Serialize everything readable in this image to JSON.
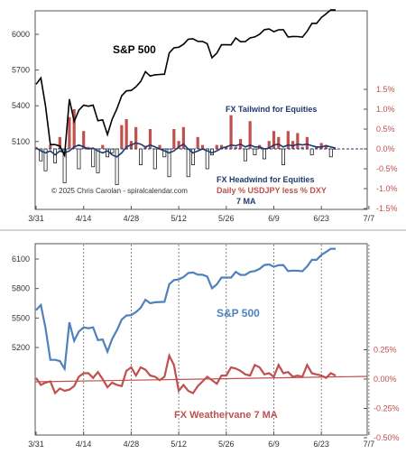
{
  "colors": {
    "spx_top": "#000000",
    "navy": "#1f3a6e",
    "red": "#c0504d",
    "blue_line": "#4f81bd",
    "axis": "#555555",
    "grid": "#666666"
  },
  "top_labels": {
    "spx": "S&P 500",
    "tailwind": "FX Tailwind for Equities",
    "headwind": "FX Headwind for Equities",
    "copyright": "© 2025 Chris Carolan - spiralcalendar.com",
    "daily": "Daily % USDJPY less % DXY",
    "ma": "7 MA"
  },
  "bottom_labels": {
    "spx": "S&P 500",
    "weathervane": "FX Weathervane 7 MA"
  },
  "chart_data": [
    {
      "type": "line",
      "id": "top",
      "x_tick_labels": [
        "3/31",
        "4/14",
        "4/28",
        "5/12",
        "5/26",
        "6/9",
        "6/23",
        "7/7"
      ],
      "y_left_ticks": [
        5100,
        5400,
        5700,
        6000
      ],
      "y_left_tick_labels": [
        "5100",
        "5400",
        "5700",
        "6000"
      ],
      "y_right_tick_labels": [
        "1.5%",
        "1.0%",
        "0.5%",
        "0.0%",
        "-0.5%",
        "-1.0%",
        "-1.5%"
      ],
      "y_right_ticks": [
        1.5,
        1.0,
        0.5,
        0.0,
        -0.5,
        -1.0,
        -1.5
      ],
      "series": [
        {
          "name": "S&P 500",
          "values": [
            5580,
            5633,
            5396,
            5074,
            5074,
            5062,
            4983,
            5456,
            5268,
            5363,
            5405,
            5396,
            5405,
            5275,
            5282,
            5158,
            5287,
            5375,
            5484,
            5525,
            5529,
            5560,
            5604,
            5686,
            5650,
            5660,
            5663,
            5665,
            5844,
            5886,
            5892,
            5916,
            5958,
            5963,
            5941,
            5940,
            5921,
            5803,
            5842,
            5912,
            5912,
            5911,
            5970,
            5938,
            5939,
            5970,
            5978,
            6000,
            6039,
            6045,
            6022,
            6038,
            6039,
            5977,
            5982,
            5981,
            5976,
            6025,
            6092,
            6092,
            6141,
            6173,
            6205,
            6204
          ]
        },
        {
          "name": "Daily % USDJPY less % DXY",
          "values": [
            0.05,
            -0.3,
            -0.55,
            0.1,
            -0.35,
            0.3,
            -0.85,
            0.8,
            1.0,
            -0.5,
            0.45,
            0.05,
            -0.45,
            -0.6,
            0.1,
            -0.2,
            -0.1,
            -0.9,
            0.6,
            0.75,
            0.2,
            0.55,
            -0.4,
            0.05,
            0.5,
            -0.5,
            0.1,
            -0.2,
            -0.7,
            0.5,
            0.2,
            0.55,
            -0.7,
            -0.4,
            0.3,
            0.1,
            -0.5,
            -0.15,
            0.1,
            0.1,
            0.05,
            0.85,
            0.05,
            0.25,
            -0.3,
            0.7,
            -0.15,
            0.1,
            -0.25,
            0.2,
            0.45,
            0.3,
            -0.4,
            0.45,
            0.2,
            0.4,
            0.05,
            0.3,
            -0.15,
            0.05,
            0.15,
            0.1,
            -0.2,
            0.0
          ]
        },
        {
          "name": "7 MA",
          "values": [
            0.02,
            -0.05,
            -0.1,
            -0.05,
            -0.15,
            -0.05,
            -0.1,
            -0.05,
            0.05,
            0.1,
            0.05,
            0.0,
            0.02,
            -0.05,
            -0.1,
            -0.05,
            -0.15,
            -0.2,
            -0.1,
            0.05,
            0.1,
            0.15,
            0.12,
            0.05,
            0.1,
            0.05,
            0.0,
            -0.05,
            -0.1,
            -0.05,
            0.05,
            0.12,
            0.0,
            -0.1,
            -0.05,
            0.0,
            -0.05,
            -0.1,
            -0.05,
            0.02,
            0.05,
            0.1,
            0.08,
            0.12,
            0.05,
            0.1,
            0.05,
            0.05,
            0.0,
            0.02,
            0.1,
            0.12,
            0.05,
            0.1,
            0.08,
            0.12,
            0.1,
            0.12,
            0.08,
            0.05,
            0.05,
            0.08,
            0.05,
            0.02
          ]
        }
      ]
    },
    {
      "type": "line",
      "id": "bottom",
      "x_tick_labels": [
        "3/31",
        "4/14",
        "4/28",
        "5/12",
        "5/26",
        "6/9",
        "6/23",
        "7/7"
      ],
      "y_left_ticks": [
        5200,
        5500,
        5800,
        6100
      ],
      "y_left_tick_labels": [
        "5200",
        "5500",
        "5800",
        "6100"
      ],
      "y_right_tick_labels": [
        "0.25%",
        "0.00%",
        "-0.25%",
        "-0.50%"
      ],
      "y_right_ticks": [
        0.25,
        0.0,
        -0.25,
        -0.5
      ],
      "series": [
        {
          "name": "S&P 500",
          "values": [
            5580,
            5633,
            5396,
            5074,
            5074,
            5062,
            4983,
            5456,
            5268,
            5363,
            5405,
            5396,
            5405,
            5275,
            5282,
            5158,
            5287,
            5375,
            5484,
            5525,
            5529,
            5560,
            5604,
            5686,
            5650,
            5660,
            5663,
            5665,
            5844,
            5886,
            5892,
            5916,
            5958,
            5963,
            5941,
            5940,
            5921,
            5803,
            5842,
            5912,
            5912,
            5911,
            5970,
            5938,
            5939,
            5970,
            5978,
            6000,
            6039,
            6045,
            6022,
            6038,
            6039,
            5977,
            5982,
            5981,
            5976,
            6025,
            6092,
            6092,
            6141,
            6173,
            6205,
            6204
          ]
        },
        {
          "name": "FX Weathervane 7 MA",
          "values": [
            0.01,
            -0.05,
            -0.03,
            -0.02,
            -0.12,
            -0.08,
            -0.1,
            -0.09,
            -0.06,
            0.02,
            0.05,
            0.05,
            0.01,
            0.06,
            0.0,
            -0.07,
            -0.03,
            -0.05,
            -0.06,
            0.07,
            0.1,
            0.03,
            0.1,
            0.08,
            0.03,
            0.02,
            -0.01,
            0.02,
            0.2,
            0.12,
            -0.1,
            -0.05,
            -0.1,
            -0.12,
            -0.06,
            -0.02,
            0.02,
            -0.01,
            -0.04,
            0.03,
            0.03,
            0.1,
            0.09,
            0.07,
            0.04,
            0.03,
            0.12,
            0.1,
            0.04,
            0.05,
            0.02,
            0.12,
            0.05,
            0.06,
            0.02,
            0.03,
            0.02,
            0.12,
            0.05,
            0.04,
            0.03,
            0.01,
            0.05,
            0.03
          ]
        }
      ]
    }
  ]
}
